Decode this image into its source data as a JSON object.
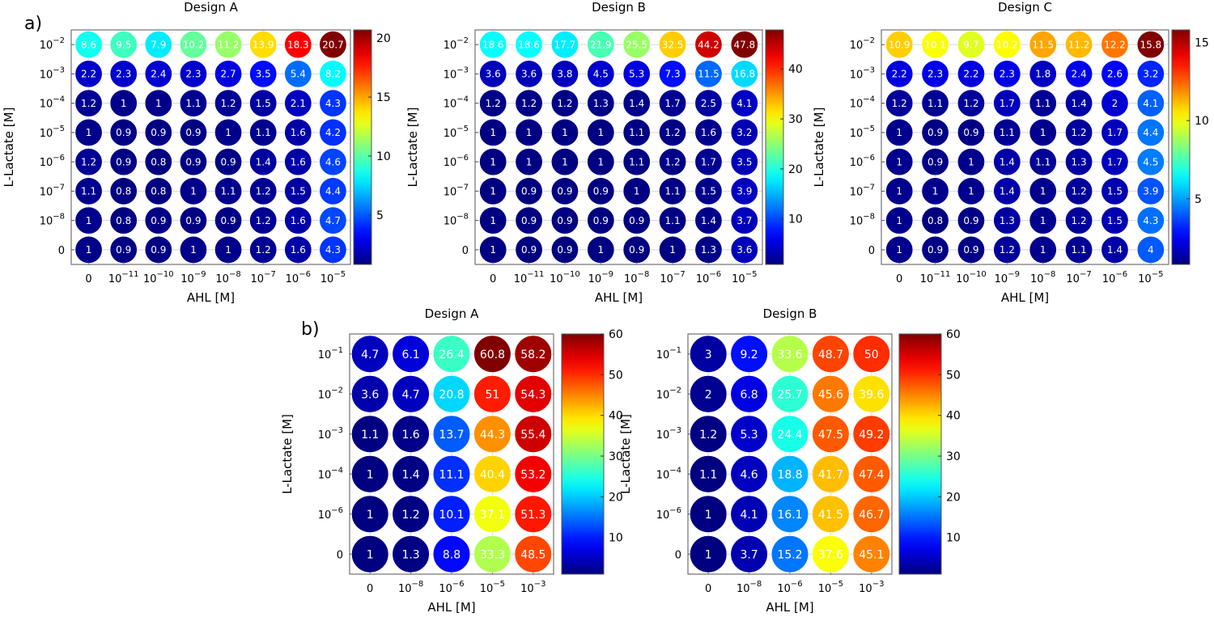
{
  "panel_labels": [
    "a)",
    "b)"
  ],
  "chart_data": [
    {
      "type": "heatmap",
      "panel": "a)",
      "title": "Design A",
      "xlabel": "AHL [M]",
      "ylabel": "L-Lactate [M]",
      "x_ticks": [
        "0",
        "10^-11",
        "10^-10",
        "10^-9",
        "10^-8",
        "10^-7",
        "10^-6",
        "10^-5"
      ],
      "y_ticks": [
        "10^-2",
        "10^-3",
        "10^-4",
        "10^-5",
        "10^-6",
        "10^-7",
        "10^-8",
        "0"
      ],
      "values": [
        [
          8.6,
          9.5,
          7.9,
          10.2,
          11.2,
          13.9,
          18.3,
          20.7
        ],
        [
          2.2,
          2.3,
          2.4,
          2.3,
          2.7,
          3.5,
          5.4,
          8.2
        ],
        [
          1.2,
          1,
          1,
          1.1,
          1.2,
          1.5,
          2.1,
          4.3
        ],
        [
          1,
          0.9,
          0.9,
          0.9,
          1,
          1.1,
          1.6,
          4.2
        ],
        [
          1.2,
          0.9,
          0.8,
          0.9,
          0.9,
          1.4,
          1.6,
          4.6
        ],
        [
          1.1,
          0.8,
          0.8,
          1,
          1.1,
          1.2,
          1.5,
          4.4
        ],
        [
          1,
          0.8,
          0.9,
          0.9,
          0.9,
          1.2,
          1.6,
          4.7
        ],
        [
          1,
          0.9,
          0.9,
          1,
          1,
          1.2,
          1.6,
          4.3
        ]
      ],
      "colorbar": {
        "min": 0.8,
        "max": 20.7,
        "ticks": [
          5,
          10,
          15,
          20
        ]
      }
    },
    {
      "type": "heatmap",
      "panel": "a)",
      "title": "Design B",
      "xlabel": "AHL [M]",
      "ylabel": "L-Lactate [M]",
      "x_ticks": [
        "0",
        "10^-11",
        "10^-10",
        "10^-9",
        "10^-8",
        "10^-7",
        "10^-6",
        "10^-5"
      ],
      "y_ticks": [
        "10^-2",
        "10^-3",
        "10^-4",
        "10^-5",
        "10^-6",
        "10^-7",
        "10^-8",
        "0"
      ],
      "values": [
        [
          18.6,
          18.6,
          17.7,
          21.9,
          25.5,
          32.5,
          44.2,
          47.8
        ],
        [
          3.6,
          3.6,
          3.8,
          4.5,
          5.3,
          7.3,
          11.5,
          16.8
        ],
        [
          1.2,
          1.2,
          1.2,
          1.3,
          1.4,
          1.7,
          2.5,
          4.1
        ],
        [
          1,
          1,
          1,
          1,
          1.1,
          1.2,
          1.6,
          3.2
        ],
        [
          1,
          1,
          1,
          1,
          1.1,
          1.2,
          1.7,
          3.5
        ],
        [
          1,
          0.9,
          0.9,
          0.9,
          1,
          1.1,
          1.5,
          3.9
        ],
        [
          1,
          0.9,
          0.9,
          0.9,
          0.9,
          1.1,
          1.4,
          3.7
        ],
        [
          1,
          0.9,
          0.9,
          1,
          0.9,
          1,
          1.3,
          3.6
        ]
      ],
      "colorbar": {
        "min": 0.9,
        "max": 47.8,
        "ticks": [
          10,
          20,
          30,
          40
        ]
      }
    },
    {
      "type": "heatmap",
      "panel": "a)",
      "title": "Design C",
      "xlabel": "AHL [M]",
      "ylabel": "L-Lactate [M]",
      "x_ticks": [
        "0",
        "10^-11",
        "10^-10",
        "10^-9",
        "10^-8",
        "10^-7",
        "10^-6",
        "10^-5"
      ],
      "y_ticks": [
        "10^-2",
        "10^-3",
        "10^-4",
        "10^-5",
        "10^-6",
        "10^-7",
        "10^-8",
        "0"
      ],
      "values": [
        [
          10.9,
          10.1,
          9.7,
          10.2,
          11.5,
          11.2,
          12.2,
          15.8
        ],
        [
          2.2,
          2.3,
          2.2,
          2.3,
          1.8,
          2.4,
          2.6,
          3.2
        ],
        [
          1.2,
          1.1,
          1.2,
          1.7,
          1.1,
          1.4,
          2,
          4.1
        ],
        [
          1,
          0.9,
          0.9,
          1.1,
          1,
          1.2,
          1.7,
          4.4
        ],
        [
          1,
          0.9,
          1,
          1.4,
          1.1,
          1.3,
          1.7,
          4.5
        ],
        [
          1,
          1,
          1,
          1.4,
          1,
          1.2,
          1.5,
          3.9
        ],
        [
          1,
          0.8,
          0.9,
          1.3,
          1,
          1.2,
          1.5,
          4.3
        ],
        [
          1,
          0.9,
          0.9,
          1.2,
          1,
          1.1,
          1.4,
          4
        ]
      ],
      "colorbar": {
        "min": 0.8,
        "max": 15.8,
        "ticks": [
          5,
          10,
          15
        ]
      }
    },
    {
      "type": "heatmap",
      "panel": "b)",
      "title": "Design A",
      "xlabel": "AHL [M]",
      "ylabel": "L-Lactate [M]",
      "x_ticks": [
        "0",
        "10^-8",
        "10^-6",
        "10^-5",
        "10^-3"
      ],
      "y_ticks": [
        "10^-1",
        "10^-2",
        "10^-3",
        "10^-4",
        "10^-6",
        "0"
      ],
      "values": [
        [
          4.7,
          6.1,
          26.4,
          60.8,
          58.2
        ],
        [
          3.6,
          4.7,
          20.8,
          51,
          54.3
        ],
        [
          1.1,
          1.6,
          13.7,
          44.3,
          55.4
        ],
        [
          1,
          1.4,
          11.1,
          40.4,
          53.2
        ],
        [
          1,
          1.2,
          10.1,
          37.1,
          51.3
        ],
        [
          1,
          1.3,
          8.8,
          33.3,
          48.5
        ]
      ],
      "colorbar": {
        "min": 1,
        "max": 60,
        "ticks": [
          10,
          20,
          30,
          40,
          50,
          60
        ]
      }
    },
    {
      "type": "heatmap",
      "panel": "b)",
      "title": "Design B",
      "xlabel": "AHL [M]",
      "ylabel": "L-Lactate [M]",
      "x_ticks": [
        "0",
        "10^-8",
        "10^-6",
        "10^-5",
        "10^-3"
      ],
      "y_ticks": [
        "10^-1",
        "10^-2",
        "10^-3",
        "10^-4",
        "10^-6",
        "0"
      ],
      "values": [
        [
          3,
          9.2,
          33.6,
          48.7,
          50
        ],
        [
          2,
          6.8,
          25.7,
          45.6,
          39.6
        ],
        [
          1.2,
          5.3,
          24.4,
          47.5,
          49.2
        ],
        [
          1.1,
          4.6,
          18.8,
          41.7,
          47.4
        ],
        [
          1,
          4.1,
          16.1,
          41.5,
          46.7
        ],
        [
          1,
          3.7,
          15.2,
          37.6,
          45.1
        ]
      ],
      "colorbar": {
        "min": 1,
        "max": 60,
        "ticks": [
          10,
          20,
          30,
          40,
          50,
          60
        ]
      }
    }
  ]
}
